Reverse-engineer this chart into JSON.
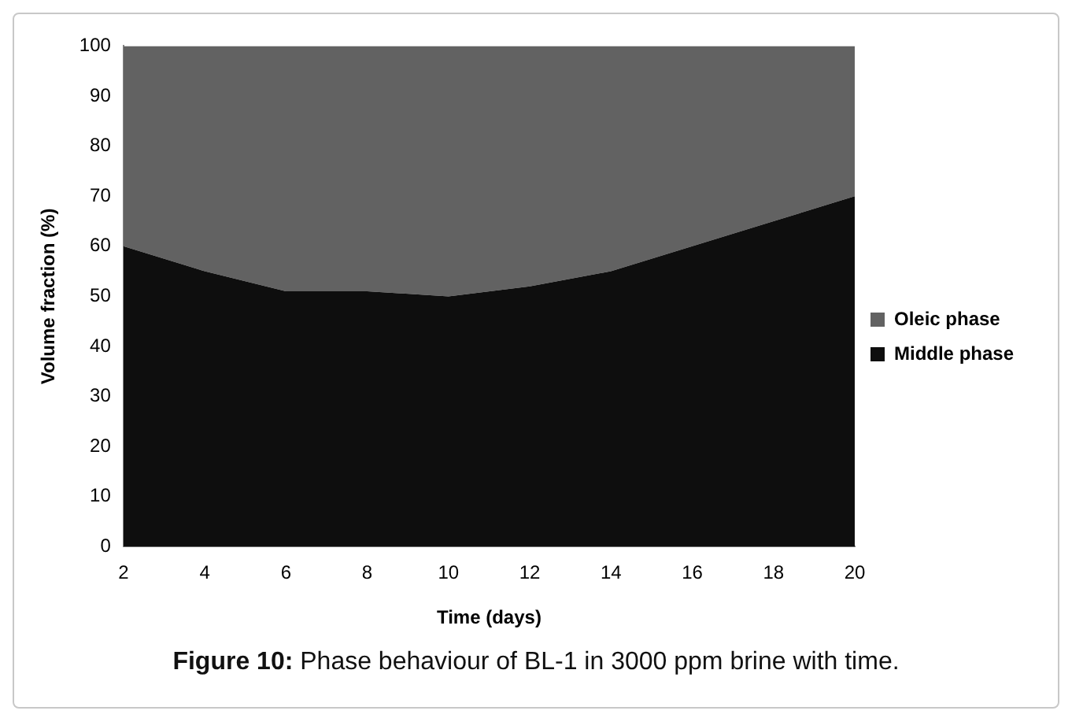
{
  "chart_data": {
    "type": "area",
    "stacked": true,
    "xlabel": "Time (days)",
    "ylabel": "Volume fraction (%)",
    "categories": [
      "2",
      "4",
      "6",
      "8",
      "10",
      "12",
      "14",
      "16",
      "18",
      "20"
    ],
    "series": [
      {
        "name": "Middle phase",
        "color": "#0e0e0e",
        "values": [
          60,
          55,
          51,
          51,
          50,
          52,
          55,
          60,
          65,
          70
        ]
      },
      {
        "name": "Oleic phase",
        "color": "#626262",
        "values": [
          40,
          45,
          49,
          49,
          50,
          48,
          45,
          40,
          35,
          30
        ]
      }
    ],
    "ylim": [
      0,
      100
    ],
    "yticks": [
      0,
      10,
      20,
      30,
      40,
      50,
      60,
      70,
      80,
      90,
      100
    ],
    "grid": false,
    "legend": "right",
    "annotations": [
      "Figure 10: Phase behaviour of BL-1 in 3000 ppm brine with time."
    ]
  }
}
